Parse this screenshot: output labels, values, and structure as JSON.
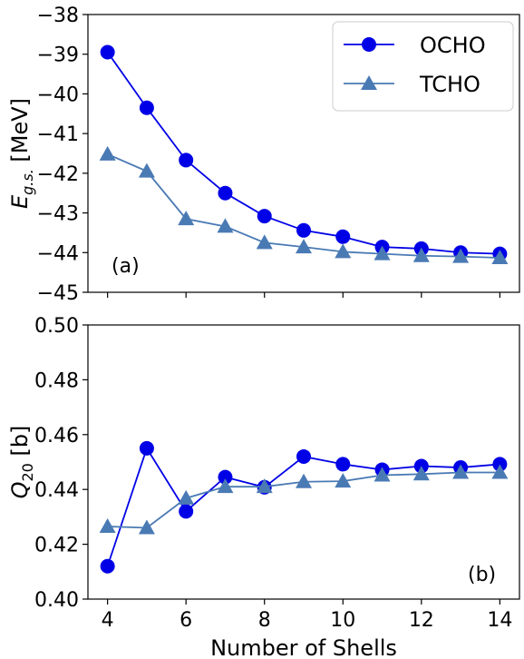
{
  "chart_data": [
    {
      "type": "line",
      "panel_label": "(a)",
      "ylabel_main": "E",
      "ylabel_sub": "g.s.",
      "ylabel_unit": "[MeV]",
      "xlabel": "",
      "xlim": [
        3.5,
        14.5
      ],
      "ylim": [
        -45,
        -38
      ],
      "x_ticks": [
        4,
        6,
        8,
        10,
        12,
        14
      ],
      "y_ticks": [
        -45,
        -44,
        -43,
        -42,
        -41,
        -40,
        -39,
        -38
      ],
      "y_tick_labels": [
        "−45",
        "−44",
        "−43",
        "−42",
        "−41",
        "−40",
        "−39",
        "−38"
      ],
      "x": [
        4,
        5,
        6,
        7,
        8,
        9,
        10,
        11,
        12,
        13,
        14
      ],
      "legend": {
        "position": "top-right"
      },
      "series": [
        {
          "name": "OCHO",
          "marker": "circle",
          "color": "#0000e6",
          "values": [
            -38.95,
            -40.35,
            -41.67,
            -42.5,
            -43.08,
            -43.44,
            -43.6,
            -43.86,
            -43.9,
            -44.0,
            -44.03
          ]
        },
        {
          "name": "TCHO",
          "marker": "triangle",
          "color": "#4a7ab4",
          "values": [
            -41.52,
            -41.95,
            -43.15,
            -43.34,
            -43.75,
            -43.86,
            -43.98,
            -44.03,
            -44.08,
            -44.1,
            -44.13
          ]
        }
      ]
    },
    {
      "type": "line",
      "panel_label": "(b)",
      "ylabel_main": "Q",
      "ylabel_sub": "20",
      "ylabel_unit": "[b]",
      "xlabel": "Number of Shells",
      "xlim": [
        3.5,
        14.5
      ],
      "ylim": [
        0.4,
        0.5
      ],
      "x_ticks": [
        4,
        6,
        8,
        10,
        12,
        14
      ],
      "y_ticks": [
        0.4,
        0.42,
        0.44,
        0.46,
        0.48,
        0.5
      ],
      "y_tick_labels": [
        "0.40",
        "0.42",
        "0.44",
        "0.46",
        "0.48",
        "0.50"
      ],
      "x": [
        4,
        5,
        6,
        7,
        8,
        9,
        10,
        11,
        12,
        13,
        14
      ],
      "series": [
        {
          "name": "OCHO",
          "marker": "circle",
          "color": "#0000e6",
          "values": [
            0.412,
            0.455,
            0.432,
            0.4445,
            0.4408,
            0.452,
            0.4492,
            0.4472,
            0.4485,
            0.448,
            0.4492
          ]
        },
        {
          "name": "TCHO",
          "marker": "triangle",
          "color": "#4a7ab4",
          "values": [
            0.4265,
            0.426,
            0.4368,
            0.441,
            0.441,
            0.4428,
            0.443,
            0.4452,
            0.4456,
            0.4462,
            0.4462
          ]
        }
      ]
    }
  ]
}
